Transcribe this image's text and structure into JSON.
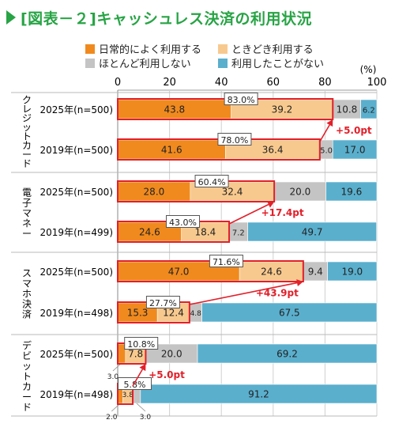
{
  "title": "[図表－２]キャッシュレス決済の利用状況",
  "unit_label": "(%)",
  "colors": {
    "title": "#27a445",
    "daily": "#f08a1e",
    "sometimes": "#f8c98e",
    "rarely": "#c4c4c4",
    "never": "#5aafcd",
    "highlight": "#e2202a"
  },
  "chart_data": {
    "type": "bar",
    "orientation": "horizontal",
    "stacked": true,
    "xlim": [
      0,
      100
    ],
    "xticks": [
      "0",
      "20",
      "40",
      "60",
      "80",
      "100"
    ],
    "legend": [
      {
        "key": "daily",
        "label": "日常的によく利用する"
      },
      {
        "key": "sometimes",
        "label": "ときどき利用する"
      },
      {
        "key": "rarely",
        "label": "ほとんど利用しない"
      },
      {
        "key": "never",
        "label": "利用したことがない"
      }
    ],
    "groups": [
      {
        "name": "クレジットカード",
        "rows": [
          {
            "label": "2025年(n=500)",
            "values": [
              43.8,
              39.2,
              10.8,
              6.2
            ],
            "usage_total": "83.0%"
          },
          {
            "label": "2019年(n=500)",
            "values": [
              41.6,
              36.4,
              5.0,
              17.0
            ],
            "usage_total": "78.0%"
          }
        ],
        "change": "+5.0pt"
      },
      {
        "name": "電子マネー",
        "rows": [
          {
            "label": "2025年(n=500)",
            "values": [
              28.0,
              32.4,
              20.0,
              19.6
            ],
            "usage_total": "60.4%"
          },
          {
            "label": "2019年(n=499)",
            "values": [
              24.6,
              18.4,
              7.2,
              49.7
            ],
            "usage_total": "43.0%"
          }
        ],
        "change": "+17.4pt"
      },
      {
        "name": "スマホ決済",
        "rows": [
          {
            "label": "2025年(n=500)",
            "values": [
              47.0,
              24.6,
              9.4,
              19.0
            ],
            "usage_total": "71.6%"
          },
          {
            "label": "2019年(n=498)",
            "values": [
              15.3,
              12.4,
              4.8,
              67.5
            ],
            "usage_total": "27.7%"
          }
        ],
        "change": "+43.9pt"
      },
      {
        "name": "デビットカード",
        "rows": [
          {
            "label": "2025年(n=500)",
            "values": [
              3.0,
              7.8,
              20.0,
              69.2
            ],
            "usage_total": "10.8%"
          },
          {
            "label": "2019年(n=498)",
            "values": [
              2.0,
              3.8,
              3.0,
              91.2
            ],
            "usage_total": "5.8%"
          }
        ],
        "change": "+5.0pt"
      }
    ]
  }
}
